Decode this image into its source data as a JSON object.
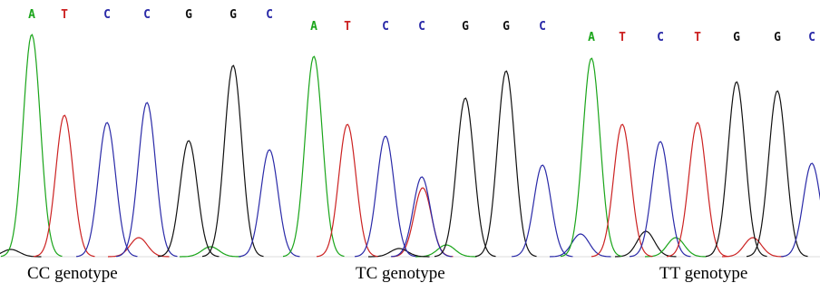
{
  "panels": [
    {
      "bases": [
        "A",
        "T",
        "C",
        "C",
        "G",
        "G",
        "C"
      ],
      "label": "CC genotype"
    },
    {
      "bases": [
        "A",
        "T",
        "C",
        "C",
        "G",
        "G",
        "C"
      ],
      "label": "TC genotype"
    },
    {
      "bases": [
        "A",
        "T",
        "C",
        "T",
        "G",
        "G",
        "C"
      ],
      "label": "TT genotype"
    }
  ]
}
